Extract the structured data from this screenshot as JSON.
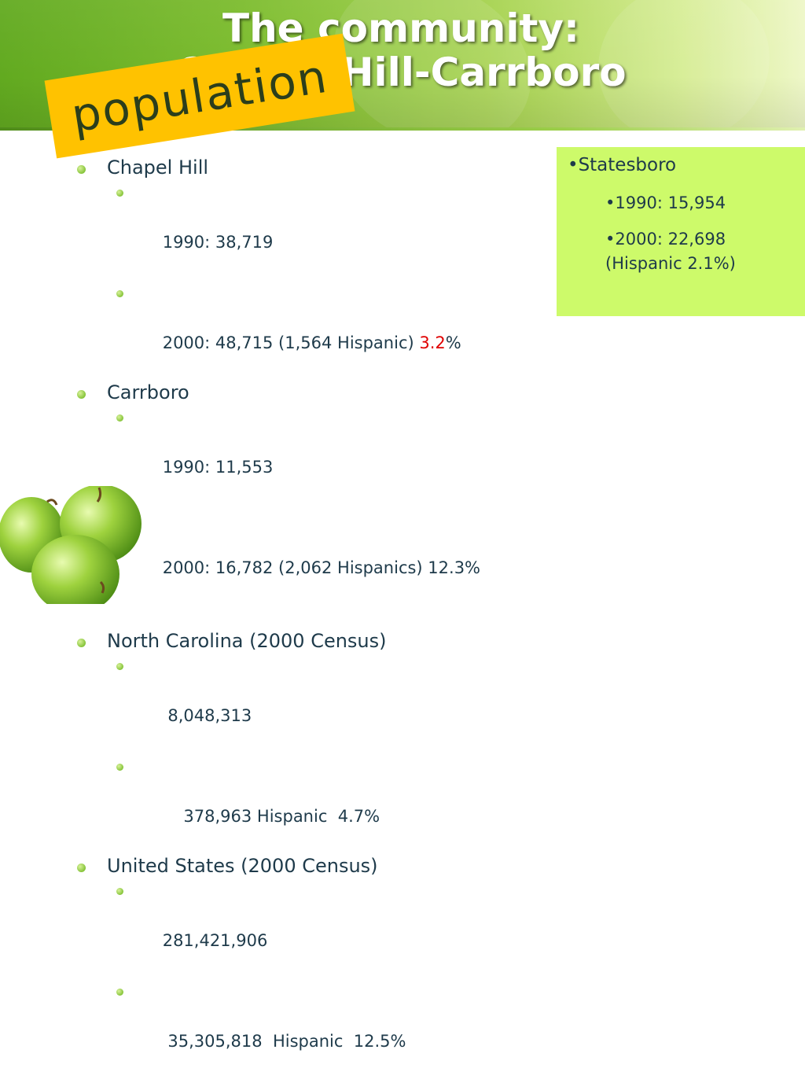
{
  "slide": {
    "title_line1": "The community:",
    "title_line2": "Chapel Hill-Carrboro",
    "tag": "population",
    "colors": {
      "header_green": "#7cbc2e",
      "tag_orange": "#ffc200",
      "box_green": "#cdfa6a",
      "text": "#1e3a4a",
      "highlight_red": "#e00000"
    }
  },
  "list": {
    "chapel_hill": {
      "label": "Chapel Hill",
      "y1990": "1990: 38,719",
      "y2000_pre": "2000: 48,715 (1,564 Hispanic) ",
      "y2000_pct": "3.2",
      "y2000_post": "%"
    },
    "carrboro": {
      "label": "Carrboro",
      "y1990": "1990: 11,553",
      "y2000": "2000: 16,782 (2,062 Hispanics) 12.3%"
    },
    "nc": {
      "label": "North Carolina  (2000 Census)",
      "total": " 8,048,313",
      "hispanic": "    378,963 Hispanic  4.7%"
    },
    "us": {
      "label": "United States (2000 Census)",
      "total": "281,421,906",
      "hispanic": " 35,305,818  Hispanic  12.5%"
    }
  },
  "statesboro": {
    "head": "•Statesboro",
    "y1990": "•1990: 15,954",
    "y2000_a": "•2000: 22,698",
    "y2000_b": "(Hispanic 2.1%)"
  },
  "decor": {
    "image": "green-apples"
  }
}
